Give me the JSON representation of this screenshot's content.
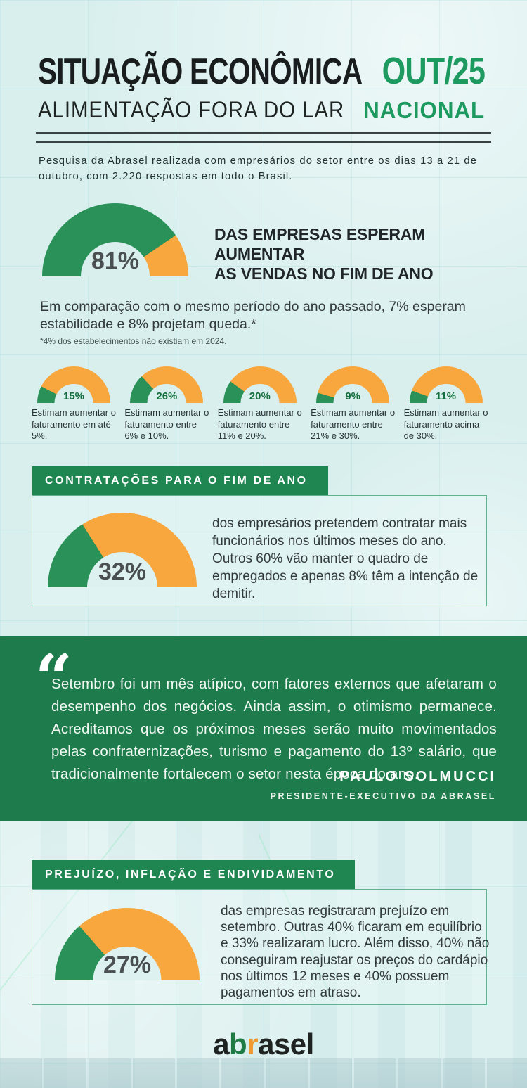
{
  "colors": {
    "gauge_green": "#2A9158",
    "gauge_orange": "#F8A73E",
    "banner_green": "#1F8551",
    "quote_green": "#1E7B4B",
    "accent_green": "#1D9A5F",
    "logo_green": "#1E7B46",
    "logo_orange": "#F0992F",
    "page_bg": "#D8EFEE"
  },
  "header": {
    "title": "SITUAÇÃO ECONÔMICA",
    "subtitle": "ALIMENTAÇÃO FORA DO LAR",
    "period": "OUT/25",
    "scope": "NACIONAL"
  },
  "intro": "Pesquisa da Abrasel realizada com empresários do setor entre os dias 13 a 21 de outubro, com 2.220 respostas em todo o Brasil.",
  "sales": {
    "headline_lines": {
      "line1": "DAS EMPRESAS ESPERAM AUMENTAR",
      "line2": "AS VENDAS NO FIM DE ANO"
    },
    "body": "Em comparação com o mesmo período do ano passado, 7% esperam estabilidade e 8% projetam queda.*",
    "footnote": "*4% dos estabelecimentos não existiam em 2024."
  },
  "hiring": {
    "banner": "CONTRATAÇÕES PARA O FIM DE ANO"
  },
  "quote": {
    "glyph": "“",
    "text": "Setembro foi um mês atípico, com fatores externos que afetaram o desempenho dos negócios. Ainda assim, o otimismo permanece. Acreditamos que os próximos meses serão muito movimentados pelas confraternizações, turismo e pagamento do 13º salário, que tradicionalmente fortalecem o setor nesta época do ano.",
    "author": "PAULO SOLMUCCI",
    "role": "PRESIDENTE-EXECUTIVO DA ABRASEL"
  },
  "losses": {
    "banner": "PREJUÍZO, INFLAÇÃO E ENDIVIDAMENTO"
  },
  "footer": {
    "logo_parts": {
      "p1": "a",
      "p2": "b",
      "p3": "r",
      "p4": "asel"
    }
  },
  "chart_data": {
    "type": "pie",
    "subtype": "semicircle_gauge",
    "unit": "%",
    "legend_position": "none",
    "series_colors": {
      "value": "#2A9158",
      "remainder": "#F8A73E"
    },
    "gauges": [
      {
        "id": "vendas_fim_de_ano",
        "value": 81,
        "remainder": 19,
        "label": "81%",
        "caption": "DAS EMPRESAS ESPERAM AUMENTAR AS VENDAS NO FIM DE ANO"
      },
      {
        "id": "faturamento_ate_5",
        "value": 15,
        "remainder": 85,
        "label": "15%",
        "caption": "Estimam aumentar o faturamento em até 5%."
      },
      {
        "id": "faturamento_6_a_10",
        "value": 26,
        "remainder": 74,
        "label": "26%",
        "caption": "Estimam aumentar o faturamento entre 6% e 10%."
      },
      {
        "id": "faturamento_11_a_20",
        "value": 20,
        "remainder": 80,
        "label": "20%",
        "caption": "Estimam aumentar o faturamento entre 11% e 20%."
      },
      {
        "id": "faturamento_21_a_30",
        "value": 9,
        "remainder": 91,
        "label": "9%",
        "caption": "Estimam aumentar o faturamento entre 21% e 30%."
      },
      {
        "id": "faturamento_acima_30",
        "value": 11,
        "remainder": 89,
        "label": "11%",
        "caption": "Estimam aumentar o faturamento acima de 30%."
      },
      {
        "id": "contratacoes",
        "value": 32,
        "remainder": 68,
        "label": "32%",
        "caption": "dos empresários pretendem contratar mais funcionários nos últimos meses do ano. Outros 60% vão manter o quadro de empregados e apenas 8% têm a intenção de demitir."
      },
      {
        "id": "prejuizo",
        "value": 27,
        "remainder": 73,
        "label": "27%",
        "caption": "das empresas registraram prejuízo em setembro. Outras 40% ficaram em equilíbrio e 33% realizaram lucro. Além disso, 40% não conseguiram reajustar os preços do cardápio nos últimos 12 meses e 40% possuem pagamentos em atraso."
      }
    ]
  }
}
